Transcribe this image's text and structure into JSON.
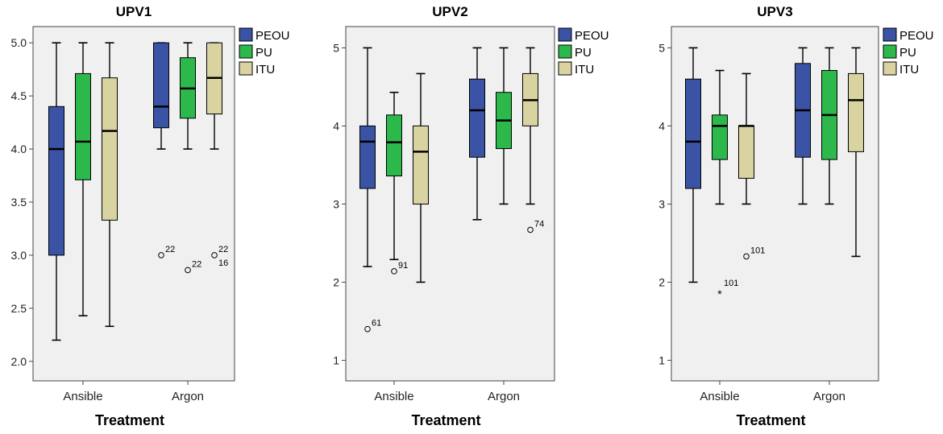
{
  "colors": {
    "PEOU": "#3a53a4",
    "PU": "#2db84b",
    "ITU": "#d9d3a2",
    "plot_bg": "#f0f0f0",
    "frame": "#444444"
  },
  "chart_data": [
    {
      "type": "box",
      "title": "UPV1",
      "xlabel": "Treatment",
      "categories": [
        "Ansible",
        "Argon"
      ],
      "legend": [
        "PEOU",
        "PU",
        "ITU"
      ],
      "ylim": [
        1.9,
        5.1
      ],
      "yticks": [
        "2.0",
        "2.5",
        "3.0",
        "3.5",
        "4.0",
        "4.5",
        "5.0"
      ],
      "ytick_values": [
        2.0,
        2.5,
        3.0,
        3.5,
        4.0,
        4.5,
        5.0
      ],
      "series": [
        {
          "name": "PEOU",
          "boxes": [
            {
              "min": 2.2,
              "q1": 3.0,
              "median": 4.0,
              "q3": 4.4,
              "max": 5.0
            },
            {
              "min": 4.0,
              "q1": 4.2,
              "median": 4.4,
              "q3": 5.0,
              "max": 5.0
            }
          ]
        },
        {
          "name": "PU",
          "boxes": [
            {
              "min": 2.43,
              "q1": 3.71,
              "median": 4.07,
              "q3": 4.71,
              "max": 5.0
            },
            {
              "min": 4.0,
              "q1": 4.29,
              "median": 4.57,
              "q3": 4.86,
              "max": 5.0
            }
          ]
        },
        {
          "name": "ITU",
          "boxes": [
            {
              "min": 2.33,
              "q1": 3.33,
              "median": 4.17,
              "q3": 4.67,
              "max": 5.0
            },
            {
              "min": 4.0,
              "q1": 4.33,
              "median": 4.67,
              "q3": 5.0,
              "max": 5.0
            }
          ]
        }
      ],
      "outliers": [
        {
          "series": "PEOU",
          "category": "Argon",
          "value": 3.0,
          "label": "22",
          "marker": "circle"
        },
        {
          "series": "PU",
          "category": "Argon",
          "value": 2.86,
          "label": "22",
          "marker": "circle"
        },
        {
          "series": "ITU",
          "category": "Argon",
          "value": 3.0,
          "label": "22",
          "marker": "circle"
        },
        {
          "series": "ITU",
          "category": "Argon",
          "value": 3.0,
          "label": "16",
          "marker": "circle"
        }
      ]
    },
    {
      "type": "box",
      "title": "UPV2",
      "xlabel": "Treatment",
      "categories": [
        "Ansible",
        "Argon"
      ],
      "legend": [
        "PEOU",
        "PU",
        "ITU"
      ],
      "ylim": [
        0.85,
        5.2
      ],
      "yticks": [
        "1",
        "2",
        "3",
        "4",
        "5"
      ],
      "ytick_values": [
        1,
        2,
        3,
        4,
        5
      ],
      "series": [
        {
          "name": "PEOU",
          "boxes": [
            {
              "min": 2.2,
              "q1": 3.2,
              "median": 3.8,
              "q3": 4.0,
              "max": 5.0
            },
            {
              "min": 2.8,
              "q1": 3.6,
              "median": 4.2,
              "q3": 4.6,
              "max": 5.0
            }
          ]
        },
        {
          "name": "PU",
          "boxes": [
            {
              "min": 2.29,
              "q1": 3.36,
              "median": 3.79,
              "q3": 4.14,
              "max": 4.43
            },
            {
              "min": 3.0,
              "q1": 3.71,
              "median": 4.07,
              "q3": 4.43,
              "max": 5.0
            }
          ]
        },
        {
          "name": "ITU",
          "boxes": [
            {
              "min": 2.0,
              "q1": 3.0,
              "median": 3.67,
              "q3": 4.0,
              "max": 4.67
            },
            {
              "min": 3.0,
              "q1": 4.0,
              "median": 4.33,
              "q3": 4.67,
              "max": 5.0
            }
          ]
        }
      ],
      "outliers": [
        {
          "series": "PEOU",
          "category": "Ansible",
          "value": 1.4,
          "label": "61",
          "marker": "circle"
        },
        {
          "series": "PU",
          "category": "Ansible",
          "value": 2.14,
          "label": "91",
          "marker": "circle"
        },
        {
          "series": "ITU",
          "category": "Argon",
          "value": 2.67,
          "label": "74",
          "marker": "circle"
        }
      ]
    },
    {
      "type": "box",
      "title": "UPV3",
      "xlabel": "Treatment",
      "categories": [
        "Ansible",
        "Argon"
      ],
      "legend": [
        "PEOU",
        "PU",
        "ITU"
      ],
      "ylim": [
        0.85,
        5.2
      ],
      "yticks": [
        "1",
        "2",
        "3",
        "4",
        "5"
      ],
      "ytick_values": [
        1,
        2,
        3,
        4,
        5
      ],
      "series": [
        {
          "name": "PEOU",
          "boxes": [
            {
              "min": 2.0,
              "q1": 3.2,
              "median": 3.8,
              "q3": 4.6,
              "max": 5.0
            },
            {
              "min": 3.0,
              "q1": 3.6,
              "median": 4.2,
              "q3": 4.8,
              "max": 5.0
            }
          ]
        },
        {
          "name": "PU",
          "boxes": [
            {
              "min": 3.0,
              "q1": 3.57,
              "median": 4.0,
              "q3": 4.14,
              "max": 4.71
            },
            {
              "min": 3.0,
              "q1": 3.57,
              "median": 4.14,
              "q3": 4.71,
              "max": 5.0
            }
          ]
        },
        {
          "name": "ITU",
          "boxes": [
            {
              "min": 3.0,
              "q1": 3.33,
              "median": 4.0,
              "q3": 4.0,
              "max": 4.67
            },
            {
              "min": 2.33,
              "q1": 3.67,
              "median": 4.33,
              "q3": 4.67,
              "max": 5.0
            }
          ]
        }
      ],
      "outliers": [
        {
          "series": "PU",
          "category": "Ansible",
          "value": 1.86,
          "label": "101",
          "marker": "star"
        },
        {
          "series": "ITU",
          "category": "Ansible",
          "value": 2.33,
          "label": "101",
          "marker": "circle"
        }
      ]
    }
  ]
}
